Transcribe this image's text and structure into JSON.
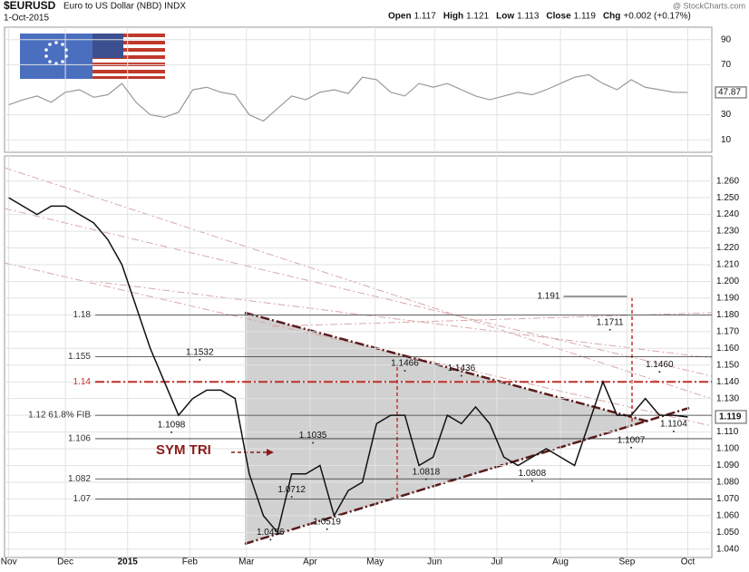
{
  "chart_data": {
    "type": "line",
    "title": "$EURUSD",
    "subtitle": "Euro to US Dollar (NBD) INDX",
    "date": "1-Oct-2015",
    "ohlc": [
      {
        "label": "Open",
        "value": "1.117"
      },
      {
        "label": "High",
        "value": "1.121"
      },
      {
        "label": "Low",
        "value": "1.113"
      },
      {
        "label": "Close",
        "value": "1.119"
      },
      {
        "label": "Chg",
        "value": "+0.002 (+0.17%)"
      }
    ],
    "source": "@ StockCharts.com",
    "xlim": [
      -0.3,
      49.7
    ],
    "xticks": [
      {
        "value": 0,
        "label": "Nov"
      },
      {
        "value": 4,
        "label": "Dec"
      },
      {
        "value": 8.4,
        "label": "2015"
      },
      {
        "value": 12.8,
        "label": "Feb"
      },
      {
        "value": 16.8,
        "label": "Mar"
      },
      {
        "value": 21.3,
        "label": "Apr"
      },
      {
        "value": 25.9,
        "label": "May"
      },
      {
        "value": 30.1,
        "label": "Jun"
      },
      {
        "value": 34.5,
        "label": "Jul"
      },
      {
        "value": 39,
        "label": "Aug"
      },
      {
        "value": 43.7,
        "label": "Sep"
      },
      {
        "value": 48,
        "label": "Oct"
      }
    ],
    "x": [
      0,
      1,
      2,
      3,
      4,
      5,
      6,
      7,
      8,
      9,
      10,
      11,
      12,
      13,
      14,
      15,
      16,
      17,
      18,
      19,
      20,
      21,
      22,
      23,
      24,
      25,
      26,
      27,
      28,
      29,
      30,
      31,
      32,
      33,
      34,
      35,
      36,
      37,
      38,
      39,
      40,
      41,
      42,
      43,
      44,
      45,
      46,
      47,
      48
    ],
    "series": [
      {
        "name": "EURUSD",
        "color": "#111111",
        "values": [
          1.25,
          1.245,
          1.24,
          1.245,
          1.245,
          1.24,
          1.235,
          1.225,
          1.21,
          1.185,
          1.16,
          1.14,
          1.12,
          1.13,
          1.135,
          1.135,
          1.13,
          1.085,
          1.06,
          1.05,
          1.085,
          1.085,
          1.09,
          1.06,
          1.075,
          1.08,
          1.115,
          1.12,
          1.12,
          1.09,
          1.095,
          1.12,
          1.115,
          1.125,
          1.115,
          1.095,
          1.09,
          1.095,
          1.1,
          1.095,
          1.09,
          1.115,
          1.14,
          1.12,
          1.12,
          1.13,
          1.12,
          1.12,
          1.119
        ]
      }
    ],
    "ylim": [
      1.035,
      1.275
    ],
    "yticks": [
      {
        "value": 1.04,
        "label": "1.040"
      },
      {
        "value": 1.05,
        "label": "1.050"
      },
      {
        "value": 1.06,
        "label": "1.060"
      },
      {
        "value": 1.07,
        "label": "1.070"
      },
      {
        "value": 1.08,
        "label": "1.080"
      },
      {
        "value": 1.09,
        "label": "1.090"
      },
      {
        "value": 1.1,
        "label": "1.100"
      },
      {
        "value": 1.11,
        "label": "1.110"
      },
      {
        "value": 1.12,
        "label": "1.120"
      },
      {
        "value": 1.13,
        "label": "1.130"
      },
      {
        "value": 1.14,
        "label": "1.140"
      },
      {
        "value": 1.15,
        "label": "1.150"
      },
      {
        "value": 1.16,
        "label": "1.160"
      },
      {
        "value": 1.17,
        "label": "1.170"
      },
      {
        "value": 1.18,
        "label": "1.180"
      },
      {
        "value": 1.19,
        "label": "1.190"
      },
      {
        "value": 1.2,
        "label": "1.200"
      },
      {
        "value": 1.21,
        "label": "1.210"
      },
      {
        "value": 1.22,
        "label": "1.220"
      },
      {
        "value": 1.23,
        "label": "1.230"
      },
      {
        "value": 1.24,
        "label": "1.240"
      },
      {
        "value": 1.25,
        "label": "1.250"
      },
      {
        "value": 1.26,
        "label": "1.260"
      }
    ],
    "last_value": "1.119",
    "grid": true,
    "levels": [
      {
        "value": 1.18,
        "color": "#333333"
      },
      {
        "value": 1.155,
        "color": "#333333"
      },
      {
        "value": 1.14,
        "color": "#c0302a"
      },
      {
        "value": {
          "value": 1.12,
          "label": "1.12 61.8% FIB"
        },
        "color": "#333333"
      },
      {
        "value": 1.106,
        "color": "#333333"
      },
      {
        "value": 1.082,
        "color": "#333333"
      },
      {
        "value": 1.07,
        "color": "#333333"
      }
    ],
    "point_labels": [
      {
        "x": 13.5,
        "value": 1.1532
      },
      {
        "x": 11.5,
        "value": 1.1098
      },
      {
        "x": 28,
        "value": 1.1466
      },
      {
        "x": 32,
        "value": 1.1436
      },
      {
        "x": 21.5,
        "value": 1.1035
      },
      {
        "x": 20,
        "value": 1.0712
      },
      {
        "x": 18.5,
        "value": 1.0456
      },
      {
        "x": 22.5,
        "value": 1.0519
      },
      {
        "x": 29.5,
        "value": 1.0818
      },
      {
        "x": 37,
        "value": 1.0808
      },
      {
        "x": 42.5,
        "value": 1.1711
      },
      {
        "x": 46,
        "value": {
          "value": 1.146,
          "label": "1.1460"
        }
      },
      {
        "x": 44,
        "value": 1.1007
      },
      {
        "x": 47,
        "value": 1.1104
      }
    ],
    "target": {
      "x": 40.5,
      "value": 1.191
    },
    "pattern_label": "SYM TRI",
    "rsi": {
      "values": [
        38,
        42,
        45,
        40,
        48,
        50,
        44,
        46,
        55,
        40,
        30,
        28,
        32,
        50,
        52,
        48,
        46,
        30,
        25,
        35,
        45,
        42,
        48,
        50,
        47,
        60,
        58,
        48,
        45,
        55,
        52,
        55,
        50,
        45,
        42,
        45,
        48,
        46,
        50,
        55,
        60,
        62,
        55,
        50,
        58,
        52,
        50,
        48,
        47.87
      ],
      "color": "#999999",
      "ylim": [
        0,
        100
      ],
      "yticks": [
        10,
        30,
        70,
        90
      ],
      "last_value": 47.87
    }
  }
}
